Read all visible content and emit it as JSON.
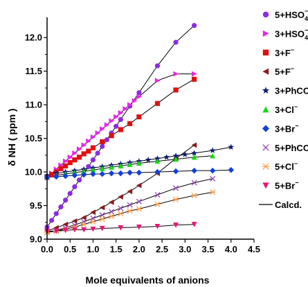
{
  "chart_data": {
    "type": "scatter",
    "title": "",
    "xlabel": "Mole equivalents of anions",
    "ylabel": "δ NH ( ppm )",
    "xlim": [
      0.0,
      4.5
    ],
    "ylim": [
      9.0,
      12.25
    ],
    "x_ticks": [
      "0.0",
      "0.5",
      "1.0",
      "1.5",
      "2.0",
      "2.5",
      "3.0",
      "3.5",
      "4.0",
      "4.5"
    ],
    "y_ticks": [
      "9.0",
      "9.5",
      "10.0",
      "10.5",
      "11.0",
      "11.5",
      "12.0"
    ],
    "grid": false,
    "legend_position": "right",
    "series": [
      {
        "name": "5+HSO4-",
        "label_main": "5+HSO",
        "sub": "4",
        "sup": "−",
        "color": "#8b2be2",
        "marker": "circle",
        "x": [
          0.0,
          0.1,
          0.2,
          0.3,
          0.4,
          0.5,
          0.6,
          0.7,
          0.8,
          0.9,
          1.0,
          1.1,
          1.2,
          1.3,
          1.4,
          1.5,
          1.6,
          1.8,
          2.0,
          2.4,
          2.8,
          3.2
        ],
        "y": [
          9.18,
          9.28,
          9.38,
          9.48,
          9.58,
          9.68,
          9.78,
          9.88,
          9.98,
          10.08,
          10.18,
          10.28,
          10.38,
          10.48,
          10.58,
          10.68,
          10.78,
          10.98,
          11.18,
          11.58,
          11.93,
          12.18
        ]
      },
      {
        "name": "3+HSO4-",
        "label_main": "3+HSO",
        "sub": "4",
        "sup": "−",
        "color": "#ee22ee",
        "marker": "triangle-right",
        "x": [
          0.0,
          0.1,
          0.2,
          0.3,
          0.4,
          0.5,
          0.6,
          0.7,
          0.8,
          0.9,
          1.0,
          1.1,
          1.2,
          1.3,
          1.4,
          1.5,
          1.6,
          1.7,
          1.8,
          1.9,
          2.0,
          2.4,
          2.8,
          3.2
        ],
        "y": [
          9.92,
          9.98,
          10.04,
          10.1,
          10.16,
          10.22,
          10.28,
          10.34,
          10.4,
          10.46,
          10.52,
          10.58,
          10.64,
          10.7,
          10.76,
          10.82,
          10.88,
          10.94,
          11.0,
          11.06,
          11.12,
          11.36,
          11.46,
          11.46
        ]
      },
      {
        "name": "3+F-",
        "label_main": "3+F",
        "sub": "",
        "sup": "−",
        "color": "#e01010",
        "marker": "square",
        "x": [
          0.0,
          0.1,
          0.2,
          0.3,
          0.4,
          0.5,
          0.6,
          0.7,
          0.8,
          0.9,
          1.0,
          1.2,
          1.4,
          1.6,
          1.8,
          2.0,
          2.4,
          2.8,
          3.2
        ],
        "y": [
          9.92,
          9.96,
          10.0,
          10.05,
          10.09,
          10.14,
          10.18,
          10.22,
          10.27,
          10.31,
          10.36,
          10.45,
          10.54,
          10.63,
          10.72,
          10.82,
          11.02,
          11.22,
          11.38
        ]
      },
      {
        "name": "5+F-",
        "label_main": "5+F",
        "sub": "",
        "sup": "−",
        "color": "#8b1a1a",
        "marker": "triangle-left",
        "x": [
          0.0,
          0.2,
          0.4,
          0.6,
          0.8,
          1.0,
          1.2,
          1.4,
          1.6,
          1.8,
          2.0,
          2.4,
          2.8,
          3.2
        ],
        "y": [
          9.12,
          9.17,
          9.22,
          9.27,
          9.32,
          9.4,
          9.47,
          9.55,
          9.63,
          9.71,
          9.8,
          9.98,
          10.2,
          10.4
        ]
      },
      {
        "name": "3+PhCO2-",
        "label_main": "3+PhCO",
        "sub": "2",
        "sup": "−",
        "color": "#0a1a7a",
        "marker": "star",
        "x": [
          0.0,
          0.2,
          0.4,
          0.6,
          0.8,
          1.0,
          1.2,
          1.4,
          1.6,
          1.8,
          2.0,
          2.2,
          2.4,
          2.6,
          2.8,
          3.0,
          3.2,
          3.6,
          4.0
        ],
        "y": [
          9.95,
          9.98,
          10.0,
          10.02,
          10.04,
          10.06,
          10.08,
          10.1,
          10.12,
          10.14,
          10.16,
          10.18,
          10.2,
          10.22,
          10.24,
          10.26,
          10.28,
          10.32,
          10.37
        ]
      },
      {
        "name": "3+Cl-",
        "label_main": "3+Cl",
        "sub": "",
        "sup": "−",
        "color": "#10dd10",
        "marker": "triangle-up",
        "x": [
          0.0,
          0.2,
          0.4,
          0.6,
          0.8,
          1.0,
          1.2,
          1.4,
          1.6,
          1.8,
          2.0,
          2.4,
          2.8,
          3.2,
          3.6
        ],
        "y": [
          9.93,
          9.95,
          9.97,
          9.99,
          10.01,
          10.03,
          10.05,
          10.07,
          10.09,
          10.11,
          10.13,
          10.16,
          10.19,
          10.22,
          10.24
        ]
      },
      {
        "name": "3+Br-",
        "label_main": "3+Br",
        "sub": "",
        "sup": "−",
        "color": "#1040e0",
        "marker": "diamond",
        "x": [
          0.0,
          0.2,
          0.4,
          0.6,
          0.8,
          1.0,
          1.2,
          1.4,
          1.6,
          1.8,
          2.0,
          2.4,
          2.8,
          3.2,
          3.6,
          4.0
        ],
        "y": [
          9.92,
          9.93,
          9.94,
          9.95,
          9.96,
          9.97,
          9.97,
          9.98,
          9.98,
          9.99,
          9.99,
          10.0,
          10.01,
          10.02,
          10.02,
          10.03
        ]
      },
      {
        "name": "5+PhCO2-",
        "label_main": "5+PhCO",
        "sub": "2",
        "sup": "−",
        "color": "#9944bb",
        "marker": "x",
        "x": [
          0.0,
          0.2,
          0.4,
          0.6,
          0.8,
          1.0,
          1.2,
          1.4,
          1.6,
          1.8,
          2.0,
          2.4,
          2.8,
          3.2,
          3.6
        ],
        "y": [
          9.1,
          9.13,
          9.17,
          9.21,
          9.26,
          9.31,
          9.36,
          9.41,
          9.46,
          9.51,
          9.56,
          9.66,
          9.76,
          9.84,
          9.9
        ]
      },
      {
        "name": "5+Cl-",
        "label_main": "5+Cl",
        "sub": "",
        "sup": "−",
        "color": "#ff9944",
        "marker": "asterisk",
        "x": [
          0.0,
          0.2,
          0.4,
          0.6,
          0.8,
          1.0,
          1.2,
          1.4,
          1.6,
          1.8,
          2.0,
          2.4,
          2.8,
          3.2,
          3.6
        ],
        "y": [
          9.1,
          9.12,
          9.15,
          9.18,
          9.22,
          9.26,
          9.3,
          9.34,
          9.38,
          9.42,
          9.45,
          9.52,
          9.59,
          9.65,
          9.7
        ]
      },
      {
        "name": "5+Br-",
        "label_main": "5+Br",
        "sub": "",
        "sup": "−",
        "color": "#ee1177",
        "marker": "triangle-down",
        "x": [
          0.0,
          0.2,
          0.4,
          0.6,
          0.8,
          1.0,
          1.2,
          1.6,
          2.0,
          2.4,
          2.8,
          3.2
        ],
        "y": [
          9.12,
          9.12,
          9.13,
          9.14,
          9.14,
          9.15,
          9.16,
          9.17,
          9.18,
          9.19,
          9.21,
          9.22
        ]
      }
    ],
    "calc_legend": "Calcd."
  }
}
